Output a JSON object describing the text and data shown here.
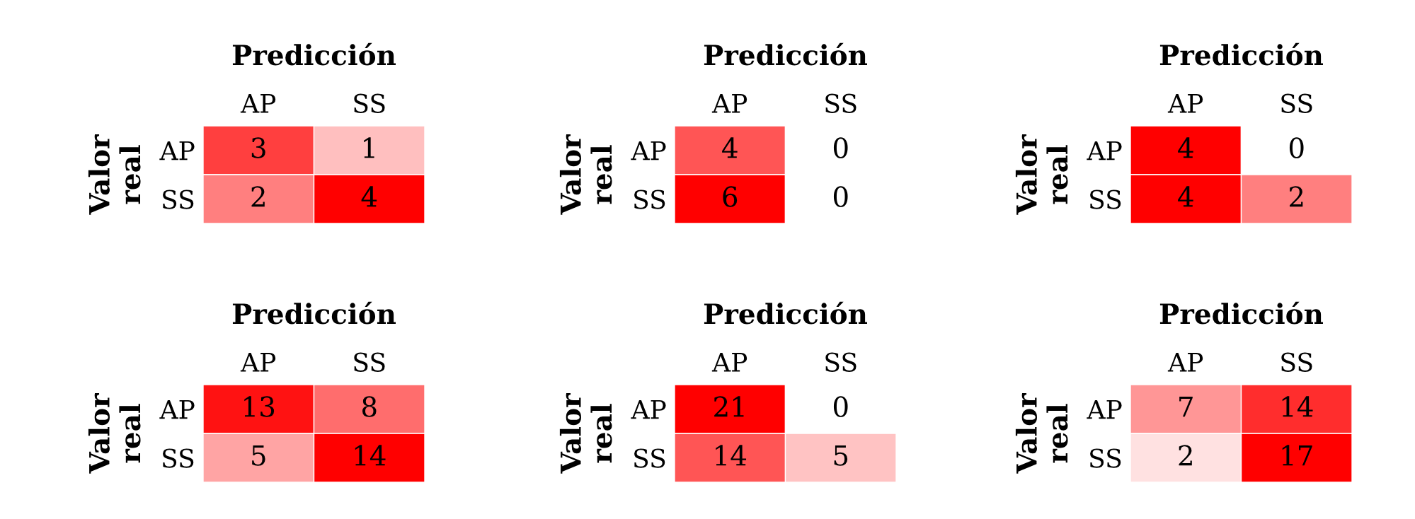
{
  "chart_data": [
    {
      "type": "heatmap",
      "title": "Predicción",
      "ylabel": "Valor real",
      "categories": [
        "AP",
        "SS"
      ],
      "y_categories": [
        "AP",
        "SS"
      ],
      "cells": [
        [
          3,
          1
        ],
        [
          2,
          4
        ]
      ],
      "data_labels": true,
      "color": "#ff0000"
    },
    {
      "type": "heatmap",
      "title": "Predicción",
      "ylabel": "Valor real",
      "categories": [
        "AP",
        "SS"
      ],
      "y_categories": [
        "AP",
        "SS"
      ],
      "cells": [
        [
          4,
          0
        ],
        [
          6,
          0
        ]
      ],
      "data_labels": true,
      "color": "#ff0000"
    },
    {
      "type": "heatmap",
      "title": "Predicción",
      "ylabel": "Valor real",
      "categories": [
        "AP",
        "SS"
      ],
      "y_categories": [
        "AP",
        "SS"
      ],
      "cells": [
        [
          4,
          0
        ],
        [
          4,
          2
        ]
      ],
      "data_labels": true,
      "color": "#ff0000"
    },
    {
      "type": "heatmap",
      "title": "Predicción",
      "ylabel": "Valor real",
      "categories": [
        "AP",
        "SS"
      ],
      "y_categories": [
        "AP",
        "SS"
      ],
      "cells": [
        [
          13,
          8
        ],
        [
          5,
          14
        ]
      ],
      "data_labels": true,
      "color": "#ff0000"
    },
    {
      "type": "heatmap",
      "title": "Predicción",
      "ylabel": "Valor real",
      "categories": [
        "AP",
        "SS"
      ],
      "y_categories": [
        "AP",
        "SS"
      ],
      "cells": [
        [
          21,
          0
        ],
        [
          14,
          5
        ]
      ],
      "data_labels": true,
      "color": "#ff0000"
    },
    {
      "type": "heatmap",
      "title": "Predicción",
      "ylabel": "Valor real",
      "categories": [
        "AP",
        "SS"
      ],
      "y_categories": [
        "AP",
        "SS"
      ],
      "cells": [
        [
          7,
          14
        ],
        [
          2,
          17
        ]
      ],
      "data_labels": true,
      "color": "#ff0000"
    }
  ]
}
